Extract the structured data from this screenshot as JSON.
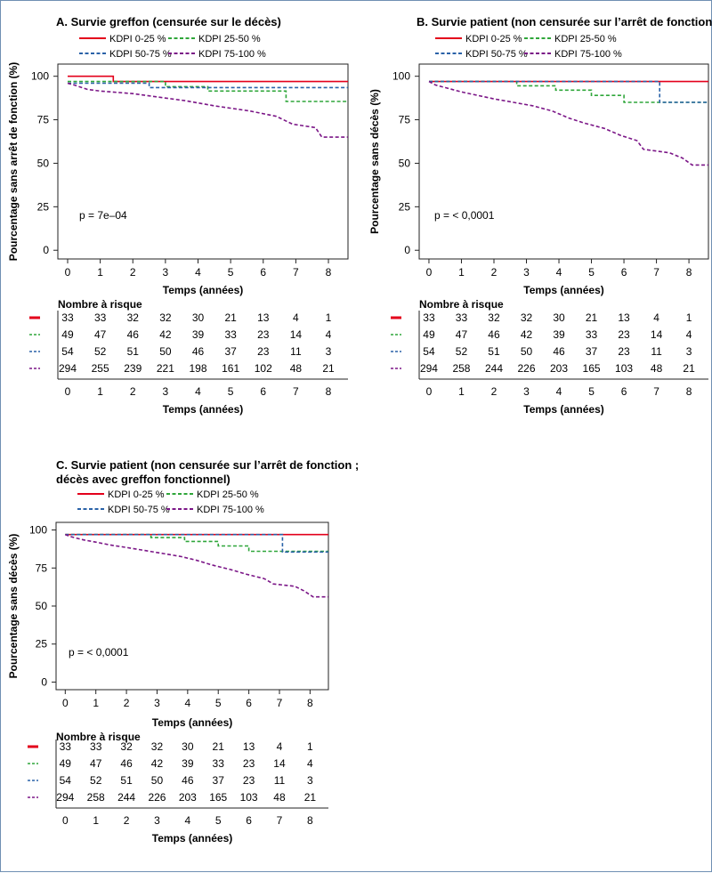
{
  "colors": {
    "g1": "#e3001b",
    "g2": "#2fa63a",
    "g3": "#2a62a8",
    "g4": "#7b1687",
    "frame": "#222222"
  },
  "panels": [
    {
      "id": "A",
      "title_lines": [
        "A. Survie greffon (censurée sur le décès)"
      ],
      "ylabel": "Pourcentage sans arrêt de fonction (%)",
      "xlabel": "Temps (années)",
      "pvalue": "p = 7e–04",
      "risk_title": "Nombre à risque",
      "risk_xlabel": "Temps (années)"
    },
    {
      "id": "B",
      "title_lines": [
        "B. Survie patient (non censurée sur l’arrêt de fonction)"
      ],
      "ylabel": "Pourcentage sans décès (%)",
      "xlabel": "Temps (années)",
      "pvalue": "p = < 0,0001",
      "risk_title": "Nombre à risque",
      "risk_xlabel": "Temps (années)"
    },
    {
      "id": "C",
      "title_lines": [
        "C. Survie patient (non censurée sur l’arrêt de fonction ;",
        "décès avec greffon fonctionnel)"
      ],
      "ylabel": "Pourcentage sans décès (%)",
      "xlabel": "Temps (années)",
      "pvalue": "p = < 0,0001",
      "risk_title": "Nombre à risque",
      "risk_xlabel": "Temps (années)"
    }
  ],
  "chart_data": [
    {
      "type": "line",
      "title": "A. Survie greffon (censurée sur le décès)",
      "xlabel": "Temps (années)",
      "ylabel": "Pourcentage sans arrêt de fonction (%)",
      "xlim": [
        -0.3,
        8.6
      ],
      "ylim": [
        -5,
        107
      ],
      "x_ticks": [
        0,
        1,
        2,
        3,
        4,
        5,
        6,
        7,
        8
      ],
      "y_ticks": [
        0,
        25,
        50,
        75,
        100
      ],
      "legend_position": "top-left",
      "series": [
        {
          "name": "KDPI 0-25 %",
          "style": "solid",
          "color_key": "g1",
          "points": [
            [
              0,
              100
            ],
            [
              1.4,
              100
            ],
            [
              1.4,
              97
            ],
            [
              8.6,
              97
            ]
          ]
        },
        {
          "name": "KDPI 25-50 %",
          "style": "dashed",
          "color_key": "g2",
          "points": [
            [
              0,
              97
            ],
            [
              3,
              97
            ],
            [
              3,
              94
            ],
            [
              4.3,
              94
            ],
            [
              4.3,
              91.5
            ],
            [
              6.7,
              91.5
            ],
            [
              6.7,
              85.5
            ],
            [
              8.6,
              85.5
            ]
          ]
        },
        {
          "name": "KDPI 50-75 %",
          "style": "dashed",
          "color_key": "g3",
          "points": [
            [
              0,
              96
            ],
            [
              2.5,
              96
            ],
            [
              2.5,
              93.5
            ],
            [
              8.6,
              93.5
            ]
          ]
        },
        {
          "name": "KDPI 75-100 %",
          "style": "dashed",
          "color_key": "g4",
          "points": [
            [
              0,
              96
            ],
            [
              0.2,
              95
            ],
            [
              0.6,
              92.5
            ],
            [
              1,
              91.5
            ],
            [
              2,
              90
            ],
            [
              2.8,
              88
            ],
            [
              3.6,
              86
            ],
            [
              4.5,
              83
            ],
            [
              5.6,
              80
            ],
            [
              6.4,
              77
            ],
            [
              6.9,
              72.5
            ],
            [
              7.6,
              70.5
            ],
            [
              7.8,
              65
            ],
            [
              8.6,
              65
            ]
          ]
        }
      ],
      "risk_table": {
        "times": [
          0,
          1,
          2,
          3,
          4,
          5,
          6,
          7,
          8
        ],
        "rows": [
          {
            "name": "KDPI 0-25 %",
            "values": [
              "33",
              "33",
              "32",
              "32",
              "30",
              "21",
              "13",
              "4",
              "1"
            ]
          },
          {
            "name": "KDPI 25-50 %",
            "values": [
              "49",
              "47",
              "46",
              "42",
              "39",
              "33",
              "23",
              "14",
              "4"
            ]
          },
          {
            "name": "KDPI 50-75 %",
            "values": [
              "54",
              "52",
              "51",
              "50",
              "46",
              "37",
              "23",
              "11",
              "3"
            ]
          },
          {
            "name": "KDPI 75-100 %",
            "values": [
              "294",
              "255",
              "239",
              "221",
              "198",
              "161",
              "102",
              "48",
              "21"
            ]
          }
        ]
      }
    },
    {
      "type": "line",
      "title": "B. Survie patient (non censurée sur l’arrêt de fonction)",
      "xlabel": "Temps (années)",
      "ylabel": "Pourcentage sans décès (%)",
      "xlim": [
        -0.3,
        8.6
      ],
      "ylim": [
        -5,
        107
      ],
      "x_ticks": [
        0,
        1,
        2,
        3,
        4,
        5,
        6,
        7,
        8
      ],
      "y_ticks": [
        0,
        25,
        50,
        75,
        100
      ],
      "legend_position": "top-left",
      "series": [
        {
          "name": "KDPI 0-25 %",
          "style": "solid",
          "color_key": "g1",
          "points": [
            [
              0,
              97
            ],
            [
              8.6,
              97
            ]
          ]
        },
        {
          "name": "KDPI 25-50 %",
          "style": "dashed",
          "color_key": "g2",
          "points": [
            [
              0,
              97
            ],
            [
              2.7,
              97
            ],
            [
              2.7,
              94.5
            ],
            [
              3.9,
              94.5
            ],
            [
              3.9,
              92
            ],
            [
              5,
              92
            ],
            [
              5,
              89
            ],
            [
              6,
              89
            ],
            [
              6,
              85
            ],
            [
              8.6,
              85
            ]
          ]
        },
        {
          "name": "KDPI 50-75 %",
          "style": "dashed",
          "color_key": "g3",
          "points": [
            [
              0,
              97
            ],
            [
              7.1,
              97
            ],
            [
              7.1,
              85
            ],
            [
              8.6,
              85
            ]
          ]
        },
        {
          "name": "KDPI 75-100 %",
          "style": "dashed",
          "color_key": "g4",
          "points": [
            [
              0,
              97
            ],
            [
              0.2,
              95
            ],
            [
              0.6,
              93
            ],
            [
              1,
              91
            ],
            [
              1.5,
              89
            ],
            [
              2,
              87
            ],
            [
              2.6,
              85
            ],
            [
              3.2,
              83
            ],
            [
              3.8,
              80
            ],
            [
              4.3,
              76
            ],
            [
              4.8,
              73
            ],
            [
              5.4,
              70
            ],
            [
              5.9,
              66
            ],
            [
              6.4,
              63
            ],
            [
              6.6,
              58
            ],
            [
              7.4,
              56
            ],
            [
              7.8,
              53
            ],
            [
              8.1,
              49
            ],
            [
              8.6,
              49
            ]
          ]
        }
      ],
      "risk_table": {
        "times": [
          0,
          1,
          2,
          3,
          4,
          5,
          6,
          7,
          8
        ],
        "rows": [
          {
            "name": "KDPI 0-25 %",
            "values": [
              "33",
              "33",
              "32",
              "32",
              "30",
              "21",
              "13",
              "4",
              "1"
            ]
          },
          {
            "name": "KDPI 25-50 %",
            "values": [
              "49",
              "47",
              "46",
              "42",
              "39",
              "33",
              "23",
              "14",
              "4"
            ]
          },
          {
            "name": "KDPI 50-75 %",
            "values": [
              "54",
              "52",
              "51",
              "50",
              "46",
              "37",
              "23",
              "11",
              "3"
            ]
          },
          {
            "name": "KDPI 75-100 %",
            "values": [
              "294",
              "258",
              "244",
              "226",
              "203",
              "165",
              "103",
              "48",
              "21"
            ]
          }
        ]
      }
    },
    {
      "type": "line",
      "title": "C. Survie patient (non censurée sur l’arrêt de fonction ; décès avec greffon fonctionnel)",
      "xlabel": "Temps (années)",
      "ylabel": "Pourcentage sans décès (%)",
      "xlim": [
        -0.3,
        8.6
      ],
      "ylim": [
        -5,
        105
      ],
      "x_ticks": [
        0,
        1,
        2,
        3,
        4,
        5,
        6,
        7,
        8
      ],
      "y_ticks": [
        0,
        25,
        50,
        75,
        100
      ],
      "legend_position": "top-left",
      "series": [
        {
          "name": "KDPI 0-25 %",
          "style": "solid",
          "color_key": "g1",
          "points": [
            [
              0,
              97
            ],
            [
              8.6,
              97
            ]
          ]
        },
        {
          "name": "KDPI 25-50 %",
          "style": "dashed",
          "color_key": "g2",
          "points": [
            [
              0,
              97
            ],
            [
              2.8,
              97
            ],
            [
              2.8,
              95
            ],
            [
              3.9,
              95
            ],
            [
              3.9,
              92.5
            ],
            [
              5,
              92.5
            ],
            [
              5,
              89.5
            ],
            [
              6,
              89.5
            ],
            [
              6,
              86
            ],
            [
              8.6,
              86
            ]
          ]
        },
        {
          "name": "KDPI 50-75 %",
          "style": "dashed",
          "color_key": "g3",
          "points": [
            [
              0,
              97
            ],
            [
              7.1,
              97
            ],
            [
              7.1,
              85.5
            ],
            [
              8.6,
              85.5
            ]
          ]
        },
        {
          "name": "KDPI 75-100 %",
          "style": "dashed",
          "color_key": "g4",
          "points": [
            [
              0,
              97
            ],
            [
              0.2,
              95.5
            ],
            [
              0.6,
              93.5
            ],
            [
              1,
              92
            ],
            [
              1.5,
              90
            ],
            [
              2,
              88.5
            ],
            [
              2.6,
              86.5
            ],
            [
              3.2,
              84.5
            ],
            [
              3.8,
              82.5
            ],
            [
              4.3,
              80
            ],
            [
              4.8,
              77
            ],
            [
              5.4,
              74
            ],
            [
              5.9,
              71
            ],
            [
              6.5,
              68
            ],
            [
              6.8,
              64.5
            ],
            [
              7.5,
              63
            ],
            [
              7.8,
              60
            ],
            [
              8.1,
              56
            ],
            [
              8.6,
              56
            ]
          ]
        }
      ],
      "risk_table": {
        "times": [
          0,
          1,
          2,
          3,
          4,
          5,
          6,
          7,
          8
        ],
        "rows": [
          {
            "name": "KDPI 0-25 %",
            "values": [
              "33",
              "33",
              "32",
              "32",
              "30",
              "21",
              "13",
              "4",
              "1"
            ]
          },
          {
            "name": "KDPI 25-50 %",
            "values": [
              "49",
              "47",
              "46",
              "42",
              "39",
              "33",
              "23",
              "14",
              "4"
            ]
          },
          {
            "name": "KDPI 50-75 %",
            "values": [
              "54",
              "52",
              "51",
              "50",
              "46",
              "37",
              "23",
              "11",
              "3"
            ]
          },
          {
            "name": "KDPI 75-100 %",
            "values": [
              "294",
              "258",
              "244",
              "226",
              "203",
              "165",
              "103",
              "48",
              "21"
            ]
          }
        ]
      }
    }
  ]
}
